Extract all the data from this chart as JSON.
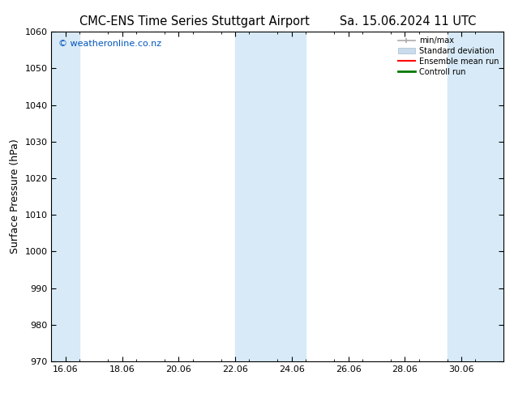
{
  "title_left": "CMC-ENS Time Series Stuttgart Airport",
  "title_right": "Sa. 15.06.2024 11 UTC",
  "ylabel": "Surface Pressure (hPa)",
  "ylim": [
    970,
    1060
  ],
  "yticks": [
    970,
    980,
    990,
    1000,
    1010,
    1020,
    1030,
    1040,
    1050,
    1060
  ],
  "xlim_start": 15.5,
  "xlim_end": 31.5,
  "xtick_labels": [
    "16.06",
    "18.06",
    "20.06",
    "22.06",
    "24.06",
    "26.06",
    "28.06",
    "30.06"
  ],
  "xtick_positions": [
    16,
    18,
    20,
    22,
    24,
    26,
    28,
    30
  ],
  "shaded_bands": [
    {
      "x_start": 15.5,
      "x_end": 16.5
    },
    {
      "x_start": 22.0,
      "x_end": 24.5
    },
    {
      "x_start": 29.5,
      "x_end": 31.5
    }
  ],
  "shade_color": "#d8eaf7",
  "background_color": "#ffffff",
  "legend_items": [
    {
      "label": "min/max",
      "color": "#aaaaaa",
      "lw": 1.2
    },
    {
      "label": "Standard deviation",
      "color": "#c8dced",
      "lw": 6
    },
    {
      "label": "Ensemble mean run",
      "color": "#ff0000",
      "lw": 1.5
    },
    {
      "label": "Controll run",
      "color": "#007700",
      "lw": 2
    }
  ],
  "watermark": "© weatheronline.co.nz",
  "watermark_color": "#0055bb",
  "title_fontsize": 10.5,
  "axis_label_fontsize": 9,
  "tick_fontsize": 8
}
